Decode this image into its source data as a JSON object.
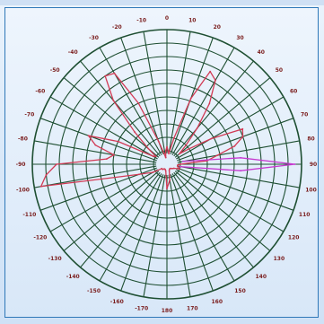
{
  "chart_data": {
    "type": "polar-line",
    "title": "",
    "angle_unit": "degrees",
    "angle_ticks": [
      0,
      10,
      20,
      30,
      40,
      50,
      60,
      70,
      80,
      90,
      100,
      110,
      120,
      130,
      140,
      150,
      160,
      170,
      180,
      -170,
      -160,
      -150,
      -140,
      -130,
      -120,
      -110,
      -100,
      -90,
      -80,
      -70,
      -60,
      -50,
      -40,
      -30,
      -20,
      -10
    ],
    "angle_tick_labels": [
      "0",
      "10",
      "20",
      "30",
      "40",
      "50",
      "60",
      "70",
      "80",
      "90",
      "100",
      "110",
      "120",
      "130",
      "140",
      "150",
      "160",
      "170",
      "180",
      "-170",
      "-160",
      "-150",
      "-140",
      "-130",
      "-120",
      "-110",
      "-100",
      "-90",
      "-80",
      "-70",
      "-60",
      "-50",
      "-40",
      "-30",
      "-20",
      "-10"
    ],
    "radial_rings": 10,
    "rlim": [
      0,
      1
    ],
    "grid": true,
    "colors": {
      "grid": "#1e4f32",
      "series_main": "#d23a55",
      "series_lobe": "#c63ad0",
      "tick_label": "#7a1d1d"
    },
    "series": [
      {
        "color": "#d23a55",
        "theta": [
          -180,
          -170,
          -160,
          -150,
          -140,
          -130,
          -120,
          -110,
          -100,
          -95,
          -90,
          -85,
          -80,
          -75,
          -70,
          -65,
          -60,
          -55,
          -50,
          -45,
          -40,
          -35,
          -30,
          -25,
          -20,
          -15,
          -10,
          -5,
          0,
          5,
          10,
          15,
          20,
          25,
          30,
          35,
          40,
          45,
          50,
          55,
          60,
          65,
          70,
          75,
          80,
          85,
          90,
          95,
          100,
          110,
          120,
          130,
          140,
          150,
          160,
          170,
          180
        ],
        "r": [
          0.18,
          0.05,
          0.04,
          0.04,
          0.05,
          0.05,
          0.12,
          0.22,
          0.95,
          0.9,
          0.82,
          0.45,
          0.4,
          0.55,
          0.62,
          0.4,
          0.12,
          0.1,
          0.18,
          0.34,
          0.62,
          0.8,
          0.78,
          0.5,
          0.18,
          0.08,
          0.05,
          0.1,
          0.13,
          0.1,
          0.08,
          0.2,
          0.52,
          0.76,
          0.72,
          0.55,
          0.35,
          0.2,
          0.12,
          0.2,
          0.38,
          0.62,
          0.6,
          0.52,
          0.38,
          0.3,
          0.1,
          0.08,
          0.08,
          0.1,
          0.06,
          0.05,
          0.04,
          0.04,
          0.05,
          0.12,
          0.18
        ]
      },
      {
        "color": "#c63ad0",
        "theta": [
          80,
          85,
          90,
          95,
          100
        ],
        "r": [
          0.12,
          0.55,
          0.95,
          0.55,
          0.1
        ]
      }
    ]
  }
}
